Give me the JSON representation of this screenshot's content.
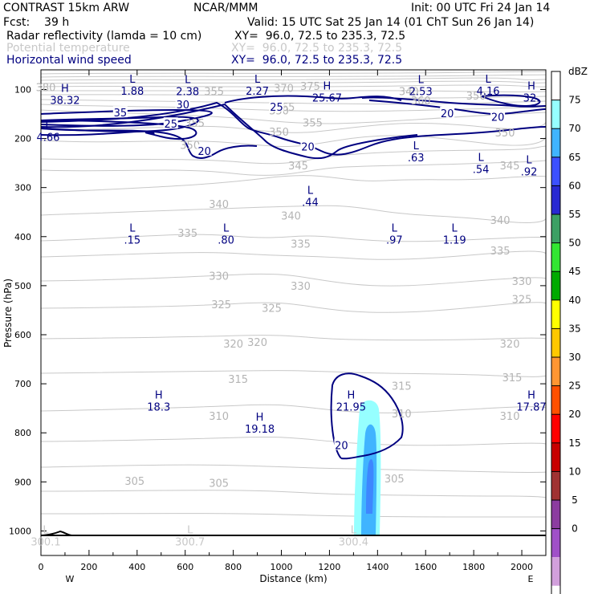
{
  "header": {
    "title": "CONTRAST 15km ARW",
    "org": "NCAR/MMM",
    "init": "Init: 00 UTC Fri 24 Jan 14",
    "fcst": "Fcst:    39 h",
    "valid": "Valid: 15 UTC Sat 25 Jan 14 (01 ChT Sun 26 Jan 14)",
    "fields": [
      {
        "name": "Radar reflectivity (lamda = 10 cm)",
        "xy": "XY=  96.0, 72.5 to 235.3, 72.5",
        "color": "#000000"
      },
      {
        "name": "Potential temperature",
        "xy": "XY=  96.0, 72.5 to 235.3, 72.5",
        "color": "#c8c8c8"
      },
      {
        "name": "Horizontal wind speed",
        "xy": "XY=  96.0, 72.5 to 235.3, 72.5",
        "color": "#000080"
      }
    ]
  },
  "chart_data": {
    "type": "contour",
    "xlabel": "Distance (km)",
    "ylabel": "Pressure (hPa)",
    "xlim": [
      0,
      2100
    ],
    "ylim": [
      1050,
      60
    ],
    "x_ticks": [
      0,
      200,
      400,
      600,
      800,
      1000,
      1200,
      1400,
      1600,
      1800,
      2000
    ],
    "y_ticks": [
      100,
      200,
      300,
      400,
      500,
      600,
      700,
      800,
      900,
      1000
    ],
    "x_ends": {
      "left": "W",
      "right": "E"
    },
    "colorbar": {
      "unit": "dBZ",
      "levels": [
        0,
        5,
        10,
        15,
        20,
        25,
        30,
        35,
        40,
        45,
        50,
        55,
        60,
        65,
        70,
        75
      ],
      "colors": [
        "#ffffff",
        "#96ffff",
        "#40b4ff",
        "#3c50ff",
        "#2828d2",
        "#3ca064",
        "#32e632",
        "#00aa00",
        "#ffff00",
        "#ffc800",
        "#ff9632",
        "#ff5000",
        "#ff0000",
        "#c80000",
        "#a03232",
        "#8c3ca0",
        "#a050c8",
        "#d2a0dc",
        "#ffffff"
      ]
    },
    "theta_labels": [
      {
        "v": "380",
        "x": 20,
        "p": 95
      },
      {
        "v": "355",
        "x": 720,
        "p": 103
      },
      {
        "v": "370",
        "x": 1010,
        "p": 97
      },
      {
        "v": "375",
        "x": 1120,
        "p": 93
      },
      {
        "v": "340",
        "x": 1530,
        "p": 103
      },
      {
        "v": "350",
        "x": 1810,
        "p": 112
      },
      {
        "v": "360",
        "x": 1580,
        "p": 122
      },
      {
        "v": "365",
        "x": 1015,
        "p": 135
      },
      {
        "v": "350",
        "x": 990,
        "p": 143
      },
      {
        "v": "355",
        "x": 1130,
        "p": 167
      },
      {
        "v": "350",
        "x": 990,
        "p": 186
      },
      {
        "v": "355",
        "x": 640,
        "p": 168
      },
      {
        "v": "350",
        "x": 1930,
        "p": 188
      },
      {
        "v": "350",
        "x": 620,
        "p": 213
      },
      {
        "v": "345",
        "x": 1070,
        "p": 255
      },
      {
        "v": "345",
        "x": 1950,
        "p": 255
      },
      {
        "v": "340",
        "x": 740,
        "p": 333
      },
      {
        "v": "340",
        "x": 1040,
        "p": 357
      },
      {
        "v": "340",
        "x": 1910,
        "p": 366
      },
      {
        "v": "335",
        "x": 610,
        "p": 392
      },
      {
        "v": "335",
        "x": 1080,
        "p": 414
      },
      {
        "v": "335",
        "x": 1910,
        "p": 428
      },
      {
        "v": "330",
        "x": 740,
        "p": 480
      },
      {
        "v": "330",
        "x": 1080,
        "p": 500
      },
      {
        "v": "330",
        "x": 2000,
        "p": 490
      },
      {
        "v": "325",
        "x": 750,
        "p": 538
      },
      {
        "v": "325",
        "x": 960,
        "p": 545
      },
      {
        "v": "325",
        "x": 2000,
        "p": 527
      },
      {
        "v": "320",
        "x": 800,
        "p": 618
      },
      {
        "v": "320",
        "x": 900,
        "p": 615
      },
      {
        "v": "320",
        "x": 1950,
        "p": 618
      },
      {
        "v": "315",
        "x": 820,
        "p": 690
      },
      {
        "v": "315",
        "x": 1500,
        "p": 704
      },
      {
        "v": "315",
        "x": 1960,
        "p": 687
      },
      {
        "v": "310",
        "x": 740,
        "p": 765
      },
      {
        "v": "310",
        "x": 1500,
        "p": 760
      },
      {
        "v": "310",
        "x": 1950,
        "p": 765
      },
      {
        "v": "305",
        "x": 390,
        "p": 898
      },
      {
        "v": "305",
        "x": 740,
        "p": 902
      },
      {
        "v": "305",
        "x": 1470,
        "p": 893
      }
    ],
    "wind_labels": [
      {
        "v": "30",
        "x": 590,
        "p": 130
      },
      {
        "v": "35",
        "x": 330,
        "p": 147
      },
      {
        "v": "25",
        "x": 980,
        "p": 135
      },
      {
        "v": "25",
        "x": 540,
        "p": 170
      },
      {
        "v": "20",
        "x": 680,
        "p": 225
      },
      {
        "v": "20",
        "x": 1110,
        "p": 216
      },
      {
        "v": "20",
        "x": 1690,
        "p": 148
      },
      {
        "v": "20",
        "x": 1900,
        "p": 156
      },
      {
        "v": "20",
        "x": 1250,
        "p": 825
      }
    ],
    "extrema": [
      {
        "kind": "L",
        "val": "1.88",
        "x": 380,
        "p": 86
      },
      {
        "kind": "L",
        "val": "2.38",
        "x": 610,
        "p": 87
      },
      {
        "kind": "L",
        "val": "2.27",
        "x": 900,
        "p": 86
      },
      {
        "kind": "L",
        "val": "2.53",
        "x": 1580,
        "p": 87
      },
      {
        "kind": "L",
        "val": "4.16",
        "x": 1860,
        "p": 86
      },
      {
        "kind": "H",
        "val": "38.32",
        "x": 100,
        "p": 105
      },
      {
        "kind": "H",
        "val": "25.67",
        "x": 1190,
        "p": 100
      },
      {
        "kind": "H",
        "val": "32.",
        "x": 2040,
        "p": 100
      },
      {
        "kind": "L",
        "val": "4.66",
        "x": 30,
        "p": 180
      },
      {
        "kind": "L",
        "val": ".63",
        "x": 1560,
        "p": 222
      },
      {
        "kind": "L",
        "val": ".54",
        "x": 1830,
        "p": 246
      },
      {
        "kind": "L",
        "val": ".92",
        "x": 2030,
        "p": 251
      },
      {
        "kind": "L",
        "val": ".44",
        "x": 1120,
        "p": 313
      },
      {
        "kind": "L",
        "val": ".15",
        "x": 380,
        "p": 390
      },
      {
        "kind": "L",
        "val": ".80",
        "x": 770,
        "p": 390
      },
      {
        "kind": "L",
        "val": ".97",
        "x": 1470,
        "p": 390
      },
      {
        "kind": "L",
        "val": "1.19",
        "x": 1720,
        "p": 390
      },
      {
        "kind": "H",
        "val": "18.3",
        "x": 490,
        "p": 730
      },
      {
        "kind": "H",
        "val": "19.18",
        "x": 910,
        "p": 775
      },
      {
        "kind": "H",
        "val": "21.95",
        "x": 1290,
        "p": 730
      },
      {
        "kind": "H",
        "val": "17.87",
        "x": 2040,
        "p": 730
      },
      {
        "kind": "L",
        "val": "300.1",
        "x": 20,
        "p": 1005
      },
      {
        "kind": "L",
        "val": "300.7",
        "x": 620,
        "p": 1005
      },
      {
        "kind": "L",
        "val": "300.4",
        "x": 1300,
        "p": 1005
      }
    ]
  }
}
